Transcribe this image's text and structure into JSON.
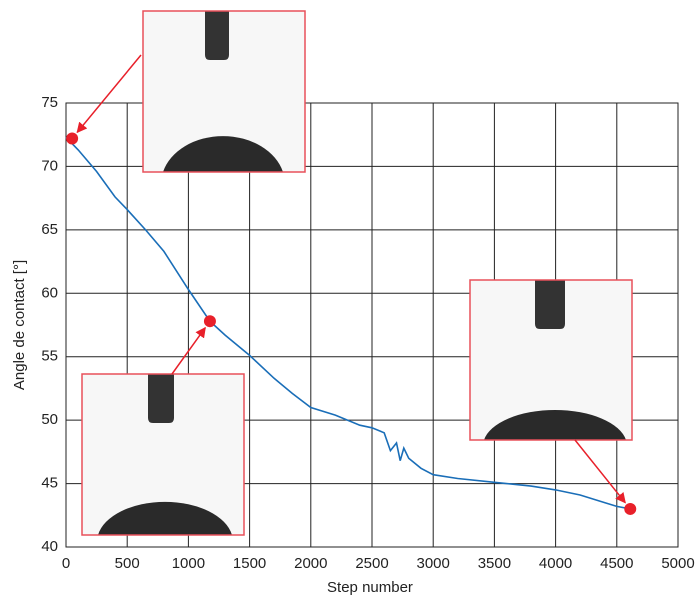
{
  "chart_data": {
    "type": "line",
    "x_label": "Step number",
    "y_label": "Angle de contact [°]",
    "x": [
      0,
      100,
      250,
      400,
      500,
      650,
      800,
      1000,
      1176,
      1300,
      1500,
      1700,
      1850,
      2000,
      2200,
      2400,
      2500,
      2600,
      2650,
      2700,
      2730,
      2760,
      2800,
      2900,
      3000,
      3200,
      3500,
      3800,
      4000,
      4200,
      4400,
      4500,
      4610
    ],
    "values": [
      72.3,
      71.3,
      69.6,
      67.6,
      66.6,
      65.0,
      63.3,
      60.3,
      57.8,
      56.7,
      55.1,
      53.3,
      52.1,
      51.0,
      50.4,
      49.6,
      49.4,
      49.0,
      47.6,
      48.2,
      46.8,
      47.8,
      47.0,
      46.2,
      45.7,
      45.4,
      45.1,
      44.8,
      44.5,
      44.1,
      43.5,
      43.2,
      43.0
    ],
    "color": "#1a6eb8",
    "highlights": {
      "x": [
        50,
        1176,
        4610
      ],
      "values": [
        72.2,
        57.8,
        43.0
      ],
      "color": "#e8202a"
    },
    "xlim": [
      0,
      5000
    ],
    "xticks": [
      0,
      500,
      1000,
      1500,
      2000,
      2500,
      3000,
      3500,
      4000,
      4500,
      5000
    ],
    "ylim": [
      40,
      75
    ],
    "yticks": [
      40,
      45,
      50,
      55,
      60,
      65,
      70,
      75
    ],
    "grid": true
  }
}
